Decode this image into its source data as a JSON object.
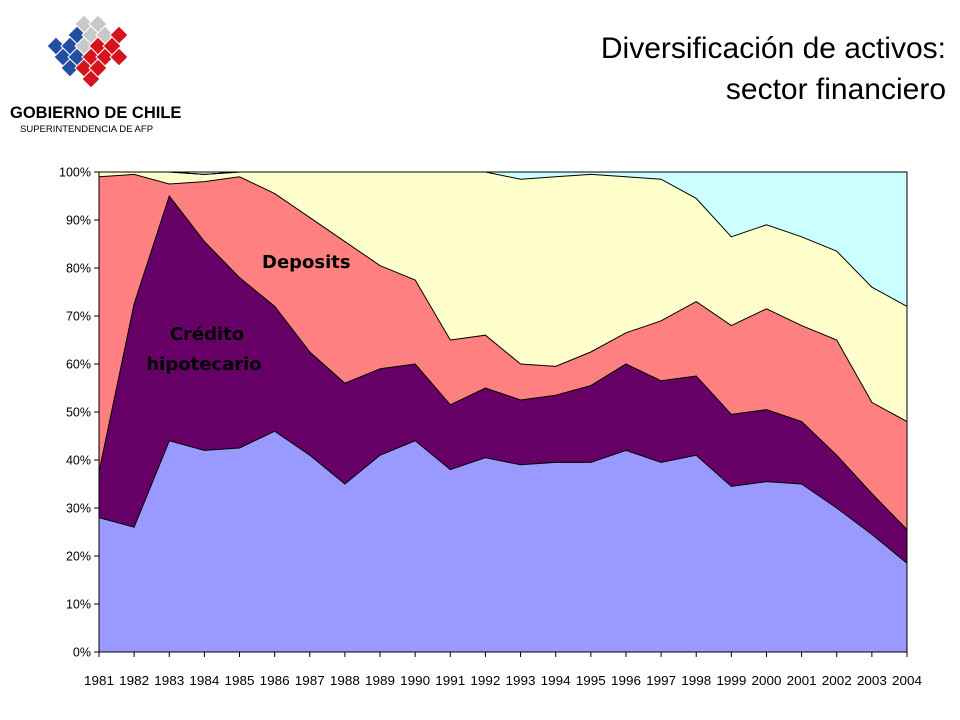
{
  "logo": {
    "line1": "GOBIERNO DE CHILE",
    "line2": "SUPERINTENDENCIA DE AFP",
    "colors": {
      "blue": "#1f4ea3",
      "red": "#d4141c",
      "gray": "#c8c8c8"
    }
  },
  "title": {
    "line1": "Diversificación de activos:",
    "line2": "sector financiero"
  },
  "chart_data": {
    "type": "area",
    "stacked": true,
    "x": [
      "1981",
      "1982",
      "1983",
      "1984",
      "1985",
      "1986",
      "1987",
      "1988",
      "1989",
      "1990",
      "1991",
      "1992",
      "1993",
      "1994",
      "1995",
      "1996",
      "1997",
      "1998",
      "1999",
      "2000",
      "2001",
      "2002",
      "2003",
      "2004"
    ],
    "ylim": [
      0,
      100
    ],
    "yticks": [
      "0%",
      "10%",
      "20%",
      "30%",
      "40%",
      "50%",
      "60%",
      "70%",
      "80%",
      "90%",
      "100%"
    ],
    "grid": false,
    "series": [
      {
        "color": "#9999ff",
        "values": [
          28,
          26,
          44,
          42,
          42.5,
          46,
          41,
          35,
          41,
          44,
          38,
          40.5,
          39,
          39.5,
          39.5,
          42,
          39.5,
          41,
          34.5,
          35.5,
          35,
          30,
          24.5,
          18.5
        ]
      },
      {
        "color": "#660066",
        "values": [
          9.5,
          46.5,
          51,
          43.5,
          35.5,
          26,
          21.5,
          21,
          18,
          16,
          13.5,
          14.5,
          13.5,
          14,
          16,
          18,
          17,
          16.5,
          15,
          15,
          13,
          11,
          8.5,
          7
        ]
      },
      {
        "color": "#ff8080",
        "values": [
          61.5,
          27,
          2.5,
          12.5,
          21,
          23.5,
          28,
          29.5,
          21.5,
          17.5,
          13.5,
          11,
          7.5,
          6,
          7,
          6.5,
          12.5,
          15.5,
          18.5,
          21,
          20,
          24,
          19,
          22.5
        ]
      },
      {
        "color": "#ffffcc",
        "values": [
          1,
          0.5,
          2.5,
          1.5,
          1,
          4.5,
          9.5,
          14.5,
          19.5,
          22.5,
          35,
          34,
          38.5,
          39.5,
          37,
          32.5,
          29.5,
          21.5,
          18.5,
          17.5,
          18.5,
          18.5,
          24,
          24
        ]
      },
      {
        "color": "#ccffff",
        "values": [
          0,
          0,
          0,
          0,
          0,
          0,
          0,
          0,
          0,
          0,
          0,
          0,
          1.5,
          1,
          0.5,
          1,
          1.5,
          5.5,
          13.5,
          11,
          13.5,
          16.5,
          24,
          28
        ]
      }
    ],
    "annotations": [
      {
        "text": "Deposits"
      },
      {
        "text_line1": "Crédito",
        "text_line2": "hipotecario"
      }
    ]
  }
}
